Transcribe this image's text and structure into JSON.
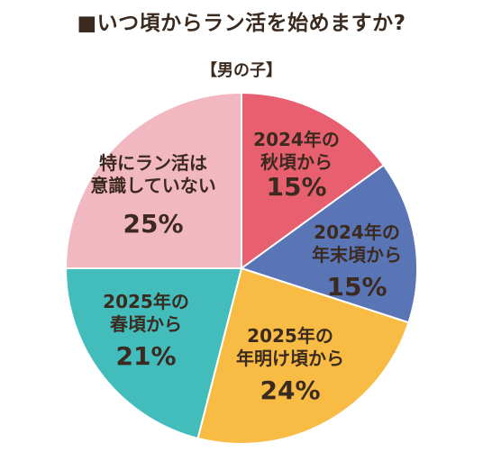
{
  "title": "■いつ頃からラン活を始めますか?",
  "subtitle": "【男の子】",
  "chart_data": {
    "type": "pie",
    "title": "■いつ頃からラン活を始めますか?",
    "subtitle": "【男の子】",
    "unit": "%",
    "slices": [
      {
        "label_lines": [
          "2024年の",
          "秋頃から"
        ],
        "value": 15,
        "value_text": "15%",
        "color": "#e8606f"
      },
      {
        "label_lines": [
          "2024年の",
          "年末頃から"
        ],
        "value": 15,
        "value_text": "15%",
        "color": "#5a75b6"
      },
      {
        "label_lines": [
          "2025年の",
          "年明け頃から"
        ],
        "value": 24,
        "value_text": "24%",
        "color": "#f8bc45"
      },
      {
        "label_lines": [
          "2025年の",
          "春頃から"
        ],
        "value": 21,
        "value_text": "21%",
        "color": "#43bcbc"
      },
      {
        "label_lines": [
          "特にラン活は",
          "意識していない"
        ],
        "value": 25,
        "value_text": "25%",
        "color": "#f2b8c2"
      }
    ]
  }
}
